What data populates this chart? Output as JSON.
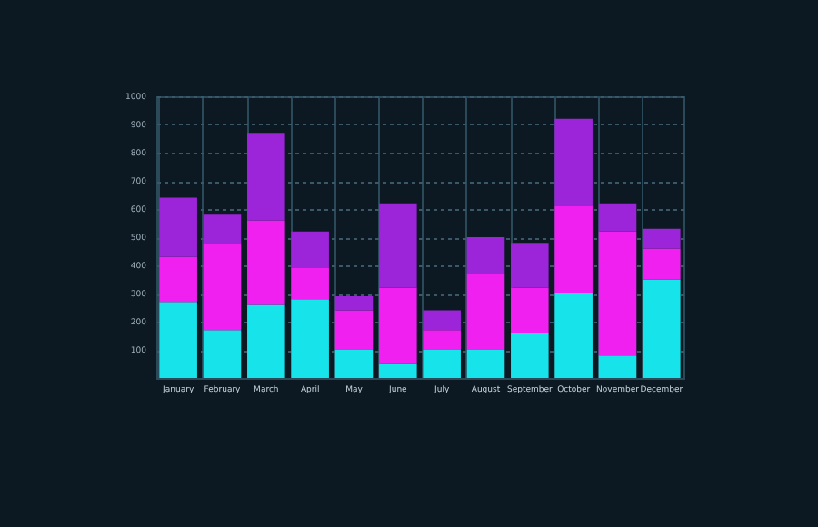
{
  "chart_data": {
    "type": "bar",
    "stacked": true,
    "categories": [
      "January",
      "February",
      "March",
      "April",
      "May",
      "June",
      "July",
      "August",
      "September",
      "October",
      "November",
      "December"
    ],
    "series": [
      {
        "color": "#17e3ea",
        "values": [
          270,
          170,
          260,
          280,
          100,
          50,
          100,
          100,
          160,
          300,
          80,
          350
        ]
      },
      {
        "color": "#f020f0",
        "values": [
          160,
          310,
          300,
          110,
          140,
          270,
          70,
          270,
          160,
          310,
          440,
          110
        ]
      },
      {
        "color": "#9c24d9",
        "values": [
          210,
          100,
          310,
          130,
          50,
          300,
          70,
          130,
          160,
          310,
          100,
          70
        ]
      }
    ],
    "ylim": [
      0,
      1000
    ],
    "yticks": [
      100,
      200,
      300,
      400,
      500,
      600,
      700,
      800,
      900,
      1000
    ],
    "grid": true,
    "legend": false
  }
}
